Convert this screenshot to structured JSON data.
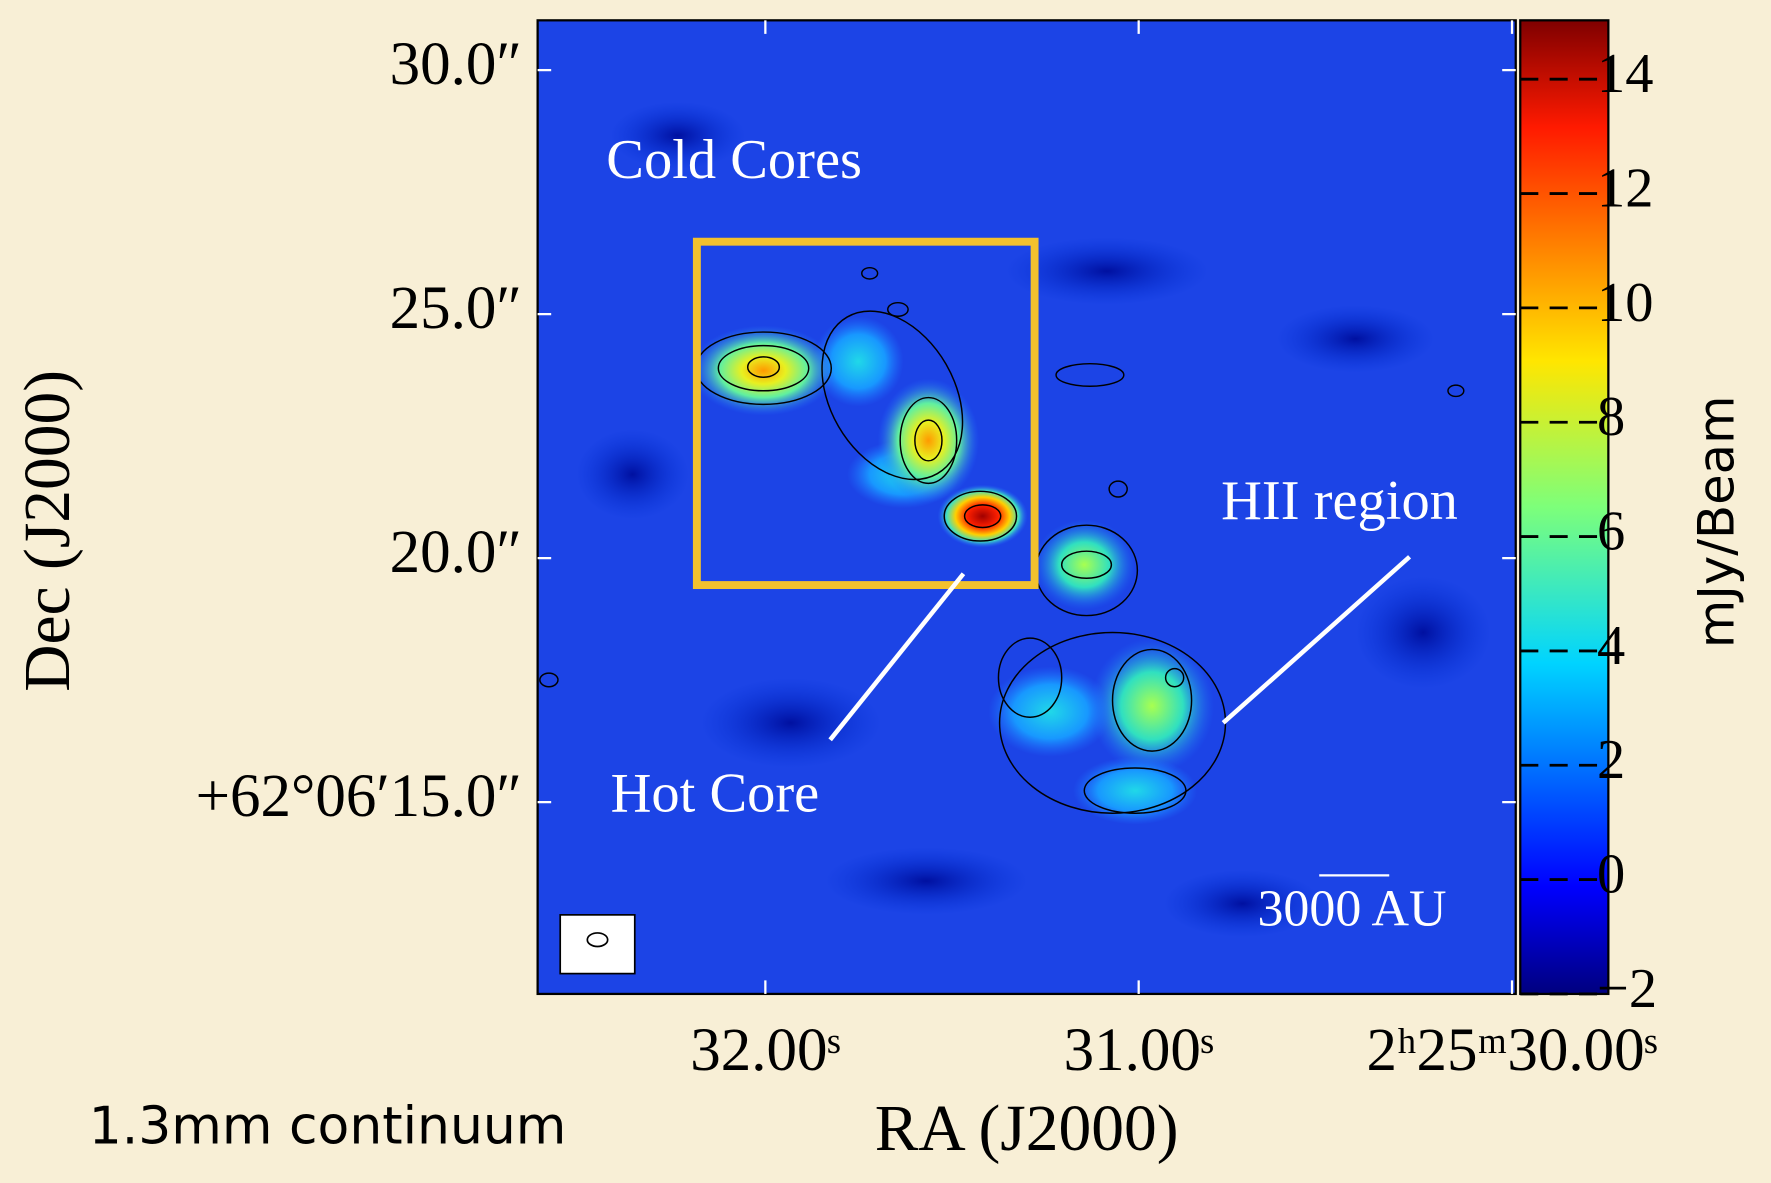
{
  "chart_data": {
    "type": "image",
    "caption": "1.3mm continuum",
    "x_label": "RA (J2000)",
    "y_label": "Dec (J2000)",
    "xlim": [
      32.61,
      29.99
    ],
    "xticks": [
      {
        "value": 32.0,
        "label": "32.00ˢ"
      },
      {
        "value": 31.0,
        "label": "31.00ˢ"
      },
      {
        "value": 30.0,
        "label": "2ʰ25ᵐ30.00ˢ"
      }
    ],
    "ylim": [
      11.07,
      31.02
    ],
    "yticks": [
      {
        "value": 30,
        "label": "30.0″"
      },
      {
        "value": 25,
        "label": "25.0″"
      },
      {
        "value": 20,
        "label": "20.0″"
      },
      {
        "value": 15,
        "label": "+62°06′15.0″"
      }
    ],
    "colorbar_label": "mJy/Beam",
    "clim": [
      -2,
      15.03
    ],
    "cticks": [
      {
        "value": -2,
        "label": "−2"
      },
      0,
      2,
      4,
      6,
      8,
      10,
      12,
      14
    ],
    "annotations": [
      "Cold Cores",
      "Hot Core",
      "HII region",
      "3000 AU"
    ]
  }
}
